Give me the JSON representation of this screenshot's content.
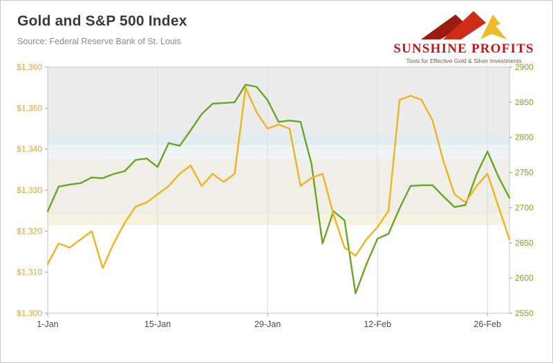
{
  "header": {
    "title": "Gold and S&P 500 Index",
    "source": "Source: Federal Reserve Bank of St. Louis"
  },
  "logo": {
    "name": "SUNSHINE PROFITS",
    "tagline": "Tools for Effective Gold & Silver Investments",
    "brand_color": "#c3161c"
  },
  "chart_data": {
    "type": "line",
    "title": "Gold and S&P 500 Index",
    "n_points": 43,
    "x_tick_labels": [
      "1-Jan",
      "15-Jan",
      "29-Jan",
      "12-Feb",
      "26-Feb"
    ],
    "x_tick_indices": [
      0,
      10,
      20,
      30,
      40
    ],
    "left_axis": {
      "min": 1300,
      "max": 1360,
      "tick_values": [
        1300,
        1310,
        1320,
        1330,
        1340,
        1350,
        1360
      ],
      "tick_labels": [
        "$1,300",
        "$1,310",
        "$1,320",
        "$1,330",
        "$1,340",
        "$1,350",
        "$1,360"
      ],
      "color": "#e5a634"
    },
    "right_axis": {
      "min": 2550,
      "max": 2900,
      "tick_values": [
        2550,
        2600,
        2650,
        2700,
        2750,
        2800,
        2850,
        2900
      ],
      "tick_labels": [
        "2550",
        "2600",
        "2650",
        "2700",
        "2750",
        "2800",
        "2850",
        "2900"
      ],
      "color": "#7ba821"
    },
    "background_bands": [
      {
        "from": 1344,
        "to": 1360,
        "color": "#ececec"
      },
      {
        "from": 1341,
        "to": 1344,
        "color": "#e3edf0"
      },
      {
        "from": 1337.5,
        "to": 1341,
        "color": "#eef3f4"
      },
      {
        "from": 1324,
        "to": 1337.5,
        "color": "#efeee7"
      },
      {
        "from": 1321.5,
        "to": 1324,
        "color": "#f6f2e0"
      },
      {
        "from": 1300,
        "to": 1321.5,
        "color": "#ffffff"
      }
    ],
    "series": [
      {
        "name": "Gold price (USD)",
        "axis": "left",
        "color": "#f1b31c",
        "values": [
          1312,
          1317,
          1316,
          1318,
          1320,
          1311,
          1317,
          1322,
          1326,
          1327,
          1329,
          1331,
          1334,
          1336,
          1331,
          1334,
          1332,
          1334,
          1355,
          1349,
          1345,
          1346,
          1345,
          1331,
          1333,
          1334,
          1324,
          1316,
          1314,
          1318,
          1321,
          1325,
          1352,
          1353,
          1352,
          1347,
          1337,
          1329,
          1327,
          1331,
          1334,
          1326,
          1318
        ]
      },
      {
        "name": "S&P 500 Index",
        "axis": "right",
        "color": "#67a522",
        "values": [
          2695,
          2730,
          2733,
          2735,
          2743,
          2742,
          2748,
          2752,
          2768,
          2770,
          2758,
          2792,
          2788,
          2810,
          2833,
          2848,
          2849,
          2850,
          2875,
          2872,
          2853,
          2822,
          2824,
          2822,
          2762,
          2649,
          2695,
          2682,
          2578,
          2620,
          2656,
          2663,
          2699,
          2731,
          2732,
          2732,
          2716,
          2701,
          2704,
          2747,
          2780,
          2744,
          2714
        ]
      }
    ],
    "legend": "none",
    "grid": "vertical-only"
  }
}
